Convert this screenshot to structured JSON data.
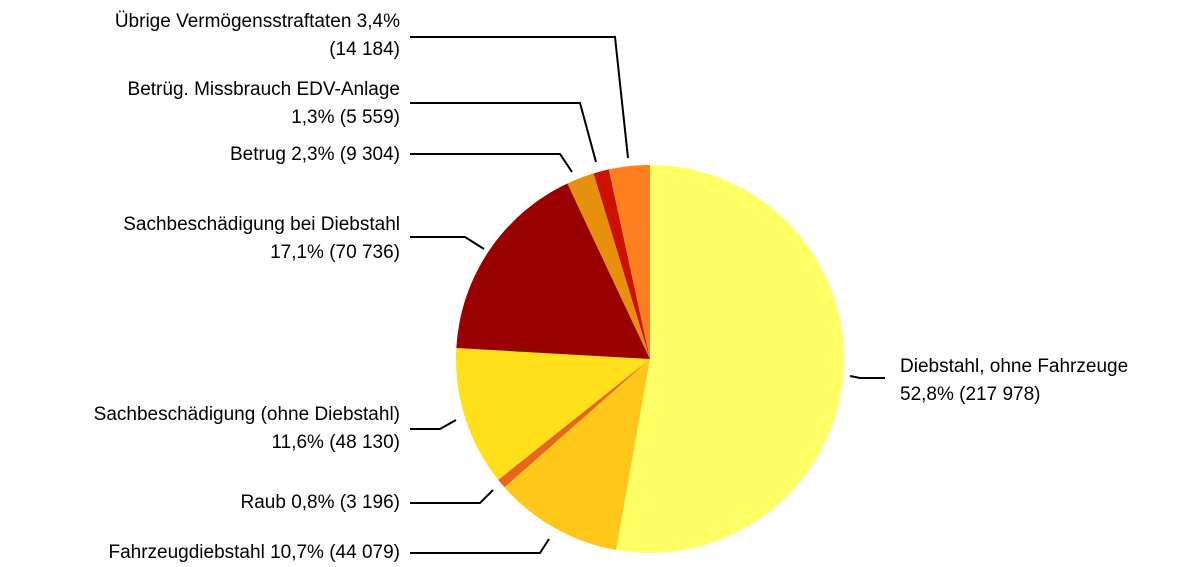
{
  "chart_data": {
    "type": "pie",
    "values": [
      52.8,
      10.7,
      0.8,
      11.6,
      17.1,
      2.3,
      1.3,
      3.4
    ],
    "value_labels": [
      [
        "Diebstahl, ohne Fahrzeuge",
        "52,8% (217 978)"
      ],
      [
        "Fahrzeugdiebstahl 10,7% (44 079)"
      ],
      [
        "Raub 0,8% (3 196)"
      ],
      [
        "Sachbeschädigung (ohne Diebstahl)",
        "11,6% (48 130)"
      ],
      [
        "Sachbeschädigung bei Diebstahl",
        "17,1% (70 736)"
      ],
      [
        "Betrug 2,3% (9 304)"
      ],
      [
        "Betrüg. Missbrauch EDV-Anlage",
        "1,3% (5 559)"
      ],
      [
        "Übrige Vermögensstraftaten 3,4%",
        "(14 184)"
      ]
    ],
    "colors": [
      "#ffff66",
      "#ffc71a",
      "#e8661a",
      "#ffe01a",
      "#990000",
      "#e6900e",
      "#cc1100",
      "#ff8020"
    ]
  }
}
